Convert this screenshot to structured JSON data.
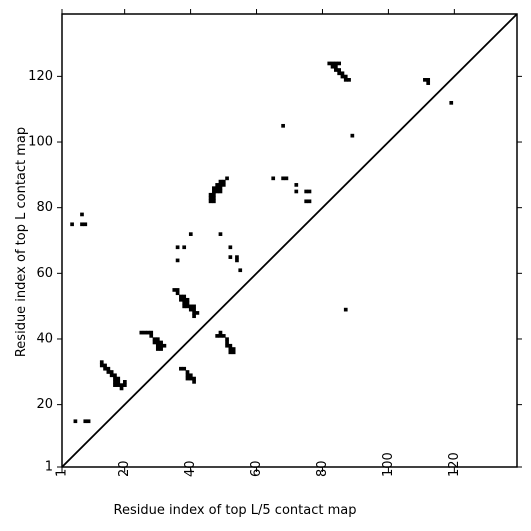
{
  "chart_data": {
    "type": "heatmap",
    "title": "",
    "xlabel": "Residue index of top L/5 contact map",
    "ylabel": "Residue index of top L contact map",
    "xlim": [
      1,
      139
    ],
    "ylim": [
      1,
      139
    ],
    "xticks": [
      1,
      20,
      40,
      60,
      80,
      100,
      120
    ],
    "yticks": [
      1,
      20,
      40,
      60,
      80,
      100,
      120
    ],
    "xtick_labels": [
      "1",
      "20",
      "40",
      "60",
      "80",
      "100",
      "120"
    ],
    "ytick_labels": [
      "1",
      "20",
      "40",
      "60",
      "80",
      "100",
      "120"
    ],
    "xtick_rotation": 270,
    "diagonal": {
      "from": [
        1,
        1
      ],
      "to": [
        139,
        139
      ]
    },
    "grid": false,
    "colors": {
      "contact": "#000000",
      "background": "#ffffff"
    },
    "upper_triangle_contacts": [
      [
        4,
        75
      ],
      [
        7,
        75
      ],
      [
        8,
        75
      ],
      [
        7,
        78
      ],
      [
        36,
        64
      ],
      [
        36,
        68
      ],
      [
        38,
        68
      ],
      [
        40,
        72
      ],
      [
        46,
        82
      ],
      [
        46,
        83
      ],
      [
        46,
        84
      ],
      [
        47,
        82
      ],
      [
        47,
        83
      ],
      [
        47,
        84
      ],
      [
        47,
        85
      ],
      [
        47,
        86
      ],
      [
        48,
        85
      ],
      [
        48,
        86
      ],
      [
        48,
        87
      ],
      [
        49,
        85
      ],
      [
        49,
        86
      ],
      [
        49,
        87
      ],
      [
        49,
        88
      ],
      [
        50,
        87
      ],
      [
        50,
        88
      ],
      [
        51,
        89
      ],
      [
        49,
        72
      ],
      [
        52,
        68
      ],
      [
        52,
        65
      ],
      [
        54,
        64
      ],
      [
        54,
        65
      ],
      [
        55,
        61
      ],
      [
        65,
        89
      ],
      [
        68,
        89
      ],
      [
        69,
        89
      ],
      [
        72,
        87
      ],
      [
        72,
        85
      ],
      [
        75,
        85
      ],
      [
        76,
        85
      ],
      [
        75,
        82
      ],
      [
        76,
        82
      ],
      [
        68,
        105
      ],
      [
        82,
        124
      ],
      [
        83,
        124
      ],
      [
        84,
        124
      ],
      [
        85,
        124
      ],
      [
        83,
        123
      ],
      [
        84,
        123
      ],
      [
        84,
        122
      ],
      [
        85,
        122
      ],
      [
        85,
        121
      ],
      [
        86,
        121
      ],
      [
        86,
        120
      ],
      [
        87,
        120
      ],
      [
        87,
        119
      ],
      [
        88,
        119
      ],
      [
        89,
        102
      ],
      [
        111,
        119
      ],
      [
        112,
        119
      ],
      [
        112,
        118
      ],
      [
        119,
        112
      ]
    ],
    "lower_triangle_contacts": [
      [
        5,
        15
      ],
      [
        8,
        15
      ],
      [
        9,
        15
      ],
      [
        13,
        32
      ],
      [
        13,
        33
      ],
      [
        14,
        31
      ],
      [
        14,
        32
      ],
      [
        15,
        30
      ],
      [
        15,
        31
      ],
      [
        16,
        30
      ],
      [
        16,
        29
      ],
      [
        17,
        29
      ],
      [
        17,
        28
      ],
      [
        18,
        28
      ],
      [
        17,
        27
      ],
      [
        17,
        26
      ],
      [
        18,
        26
      ],
      [
        18,
        27
      ],
      [
        19,
        26
      ],
      [
        19,
        25
      ],
      [
        20,
        26
      ],
      [
        20,
        27
      ],
      [
        25,
        42
      ],
      [
        26,
        42
      ],
      [
        27,
        42
      ],
      [
        28,
        42
      ],
      [
        28,
        41
      ],
      [
        29,
        40
      ],
      [
        29,
        39
      ],
      [
        30,
        40
      ],
      [
        30,
        39
      ],
      [
        31,
        39
      ],
      [
        31,
        38
      ],
      [
        30,
        38
      ],
      [
        30,
        37
      ],
      [
        31,
        37
      ],
      [
        32,
        38
      ],
      [
        35,
        55
      ],
      [
        36,
        55
      ],
      [
        36,
        54
      ],
      [
        37,
        53
      ],
      [
        37,
        52
      ],
      [
        38,
        53
      ],
      [
        38,
        52
      ],
      [
        39,
        52
      ],
      [
        38,
        51
      ],
      [
        38,
        50
      ],
      [
        39,
        51
      ],
      [
        39,
        50
      ],
      [
        40,
        50
      ],
      [
        40,
        49
      ],
      [
        41,
        50
      ],
      [
        41,
        49
      ],
      [
        41,
        48
      ],
      [
        42,
        48
      ],
      [
        41,
        47
      ],
      [
        37,
        31
      ],
      [
        38,
        31
      ],
      [
        39,
        30
      ],
      [
        39,
        29
      ],
      [
        40,
        29
      ],
      [
        39,
        28
      ],
      [
        40,
        28
      ],
      [
        41,
        28
      ],
      [
        41,
        27
      ],
      [
        48,
        41
      ],
      [
        49,
        41
      ],
      [
        49,
        42
      ],
      [
        50,
        41
      ],
      [
        51,
        40
      ],
      [
        51,
        39
      ],
      [
        51,
        38
      ],
      [
        52,
        38
      ],
      [
        52,
        37
      ],
      [
        53,
        37
      ],
      [
        53,
        36
      ],
      [
        52,
        36
      ],
      [
        87,
        49
      ]
    ]
  }
}
